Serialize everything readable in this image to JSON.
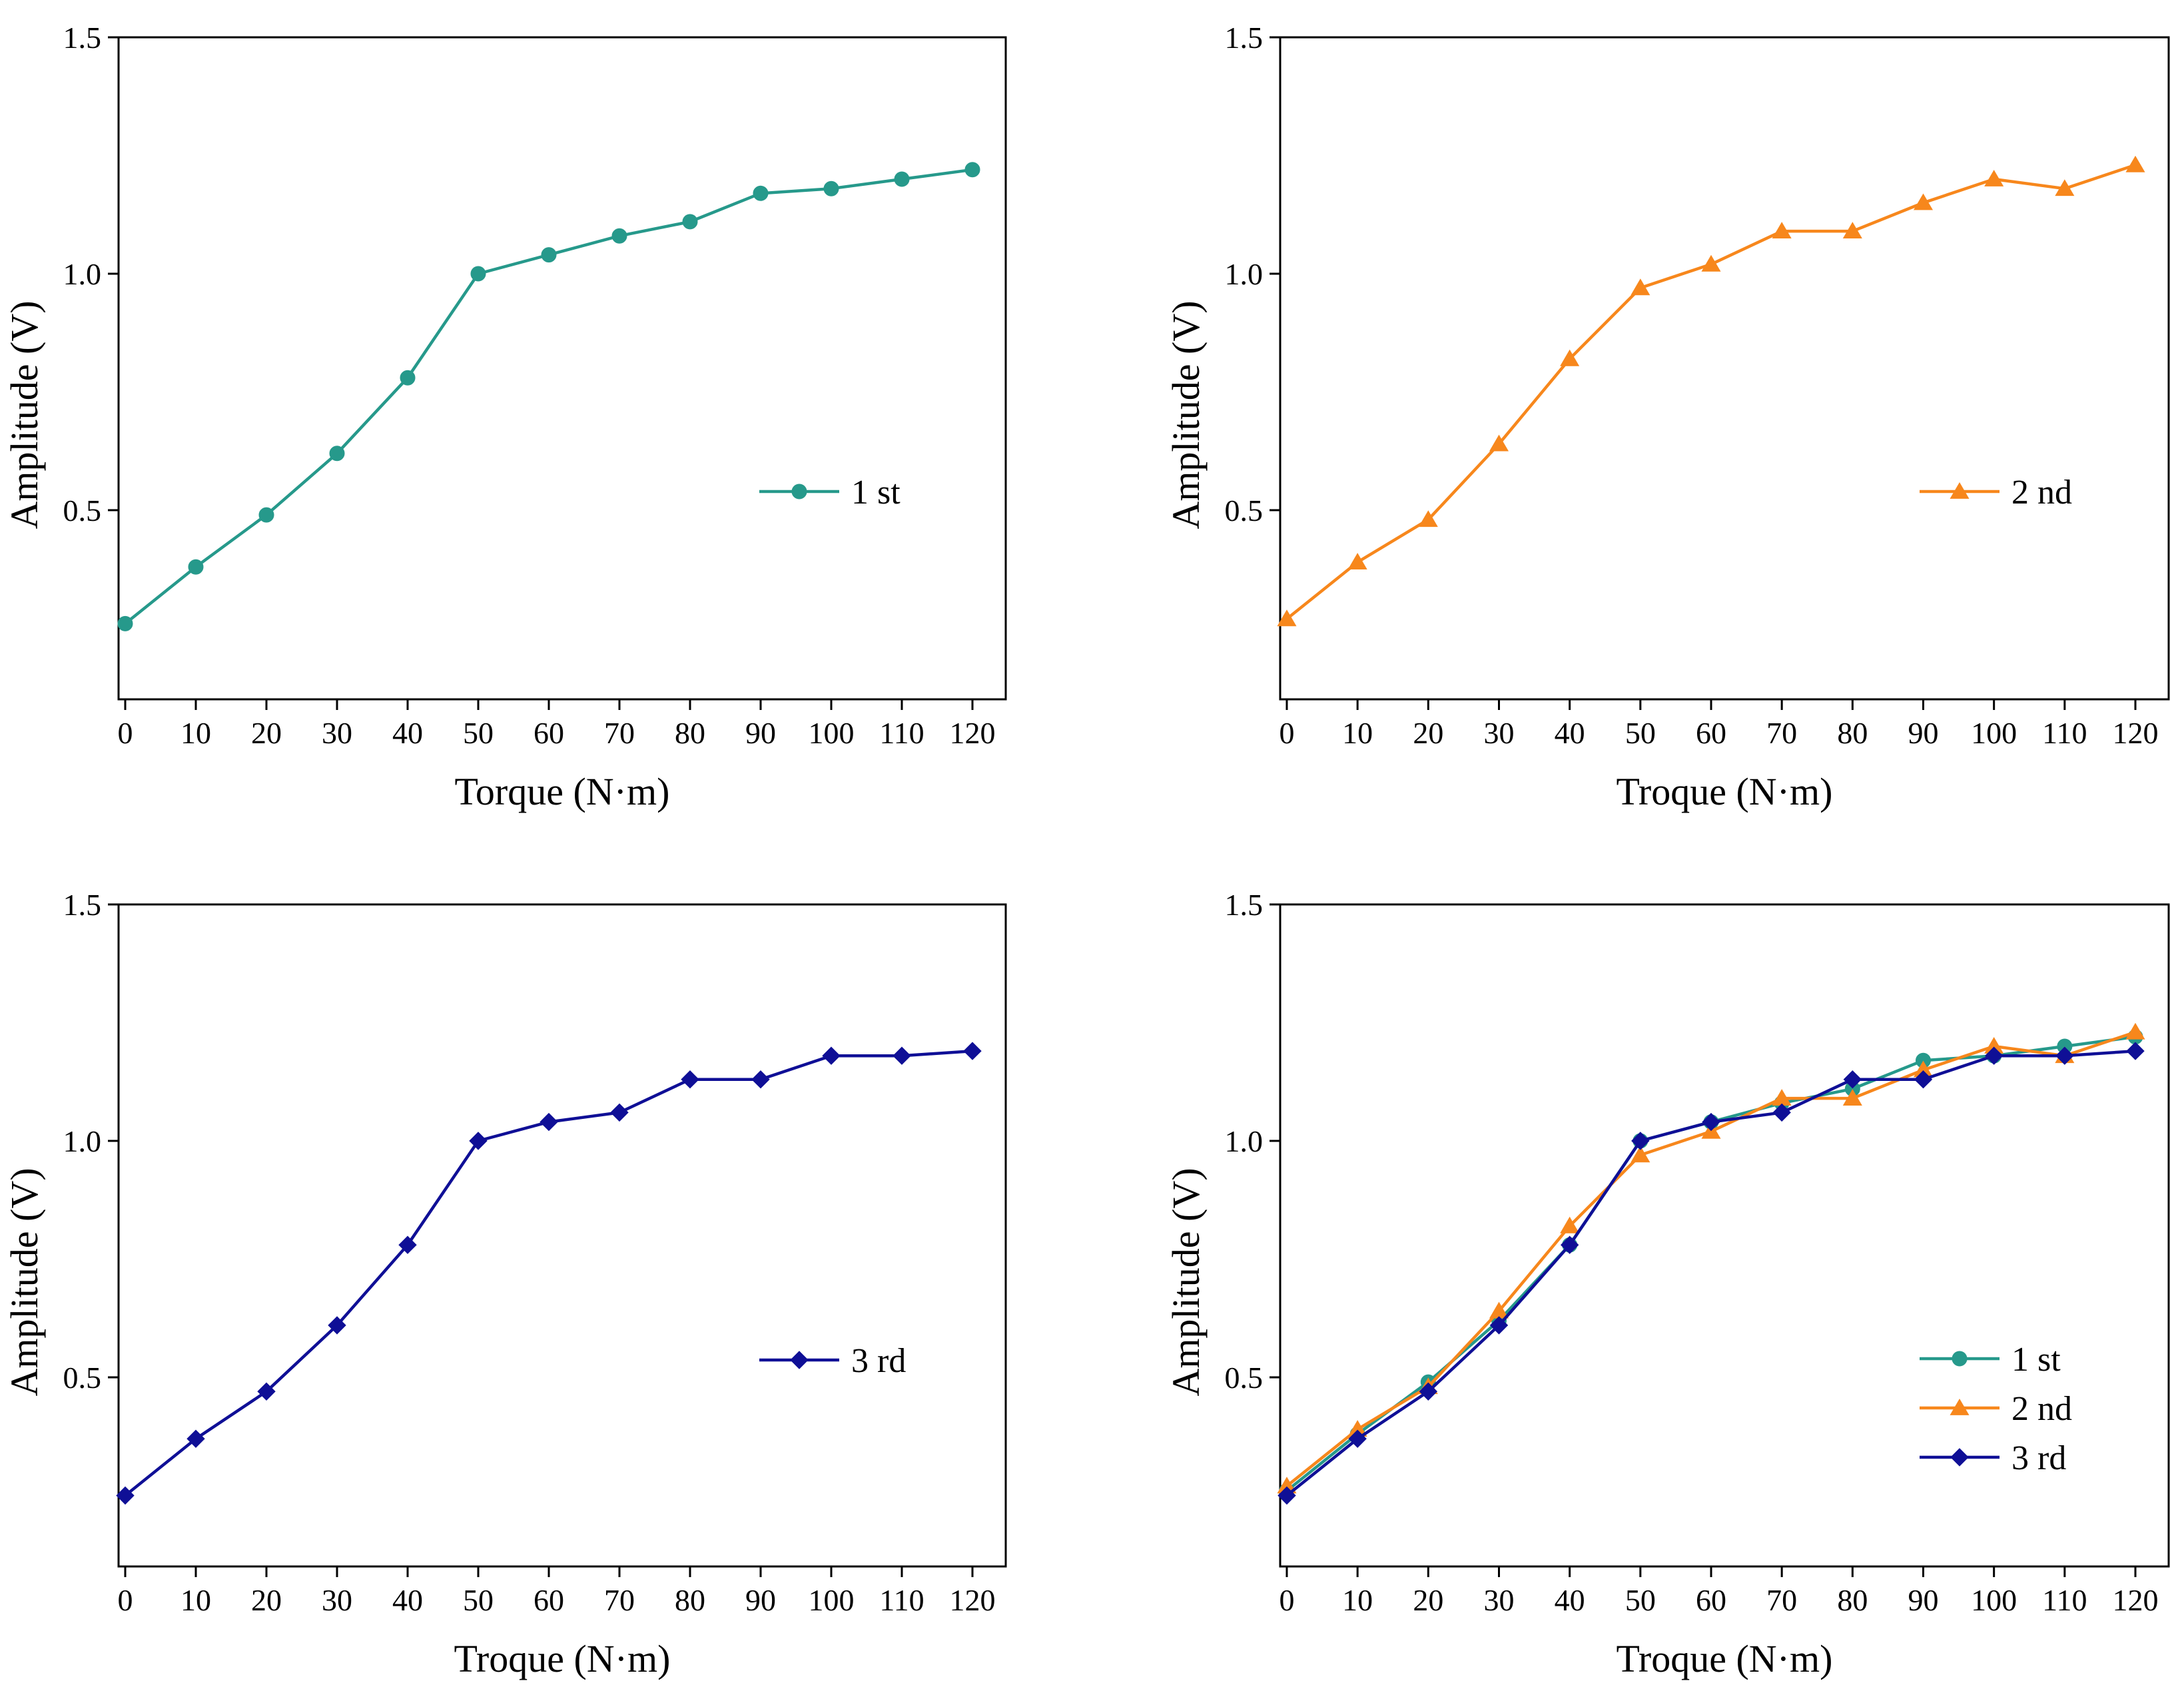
{
  "chart_data": [
    {
      "type": "line",
      "title": "",
      "xlabel": "Torque (N·m)",
      "ylabel": "Amplitude (V)",
      "xlim": [
        0,
        120
      ],
      "ylim": [
        0.1,
        1.5
      ],
      "x": [
        0,
        10,
        20,
        30,
        40,
        50,
        60,
        70,
        80,
        90,
        100,
        110,
        120
      ],
      "xticks": [
        "0",
        "10",
        "20",
        "30",
        "40",
        "50",
        "60",
        "70",
        "80",
        "90",
        "100",
        "110",
        "120"
      ],
      "yticks": [
        "0.5",
        "1.0",
        "1.5"
      ],
      "grid": false,
      "legend_position": "right",
      "series": [
        {
          "name": "1 st",
          "color": "#26998b",
          "marker": "circle",
          "values": [
            0.26,
            0.38,
            0.49,
            0.62,
            0.78,
            1.0,
            1.04,
            1.08,
            1.11,
            1.17,
            1.18,
            1.2,
            1.22
          ]
        }
      ]
    },
    {
      "type": "line",
      "title": "",
      "xlabel": "Troque (N·m)",
      "ylabel": "Amplitude (V)",
      "xlim": [
        0,
        120
      ],
      "ylim": [
        0.1,
        1.5
      ],
      "x": [
        0,
        10,
        20,
        30,
        40,
        50,
        60,
        70,
        80,
        90,
        100,
        110,
        120
      ],
      "xticks": [
        "0",
        "10",
        "20",
        "30",
        "40",
        "50",
        "60",
        "70",
        "80",
        "90",
        "100",
        "110",
        "120"
      ],
      "yticks": [
        "0.5",
        "1.0",
        "1.5"
      ],
      "grid": false,
      "legend_position": "right",
      "series": [
        {
          "name": "2 nd",
          "color": "#f7871c",
          "marker": "triangle",
          "values": [
            0.27,
            0.39,
            0.48,
            0.64,
            0.82,
            0.97,
            1.02,
            1.09,
            1.09,
            1.15,
            1.2,
            1.18,
            1.23
          ]
        }
      ]
    },
    {
      "type": "line",
      "title": "",
      "xlabel": "Troque (N·m)",
      "ylabel": "Amplitude (V)",
      "xlim": [
        0,
        120
      ],
      "ylim": [
        0.1,
        1.5
      ],
      "x": [
        0,
        10,
        20,
        30,
        40,
        50,
        60,
        70,
        80,
        90,
        100,
        110,
        120
      ],
      "xticks": [
        "0",
        "10",
        "20",
        "30",
        "40",
        "50",
        "60",
        "70",
        "80",
        "90",
        "100",
        "110",
        "120"
      ],
      "yticks": [
        "0.5",
        "1.0",
        "1.5"
      ],
      "grid": false,
      "legend_position": "right",
      "series": [
        {
          "name": "3 rd",
          "color": "#0f0f96",
          "marker": "diamond",
          "values": [
            0.25,
            0.37,
            0.47,
            0.61,
            0.78,
            1.0,
            1.04,
            1.06,
            1.13,
            1.13,
            1.18,
            1.18,
            1.19
          ]
        }
      ]
    },
    {
      "type": "line",
      "title": "",
      "xlabel": "Troque (N·m)",
      "ylabel": "Amplitude (V)",
      "xlim": [
        0,
        120
      ],
      "ylim": [
        0.1,
        1.5
      ],
      "x": [
        0,
        10,
        20,
        30,
        40,
        50,
        60,
        70,
        80,
        90,
        100,
        110,
        120
      ],
      "xticks": [
        "0",
        "10",
        "20",
        "30",
        "40",
        "50",
        "60",
        "70",
        "80",
        "90",
        "100",
        "110",
        "120"
      ],
      "yticks": [
        "0.5",
        "1.0",
        "1.5"
      ],
      "grid": false,
      "legend_position": "bottom-right",
      "series": [
        {
          "name": "1 st",
          "color": "#26998b",
          "marker": "circle",
          "values": [
            0.26,
            0.38,
            0.49,
            0.62,
            0.78,
            1.0,
            1.04,
            1.08,
            1.11,
            1.17,
            1.18,
            1.2,
            1.22
          ]
        },
        {
          "name": "2 nd",
          "color": "#f7871c",
          "marker": "triangle",
          "values": [
            0.27,
            0.39,
            0.48,
            0.64,
            0.82,
            0.97,
            1.02,
            1.09,
            1.09,
            1.15,
            1.2,
            1.18,
            1.23
          ]
        },
        {
          "name": "3 rd",
          "color": "#0f0f96",
          "marker": "diamond",
          "values": [
            0.25,
            0.37,
            0.47,
            0.61,
            0.78,
            1.0,
            1.04,
            1.06,
            1.13,
            1.13,
            1.18,
            1.18,
            1.19
          ]
        }
      ]
    }
  ]
}
